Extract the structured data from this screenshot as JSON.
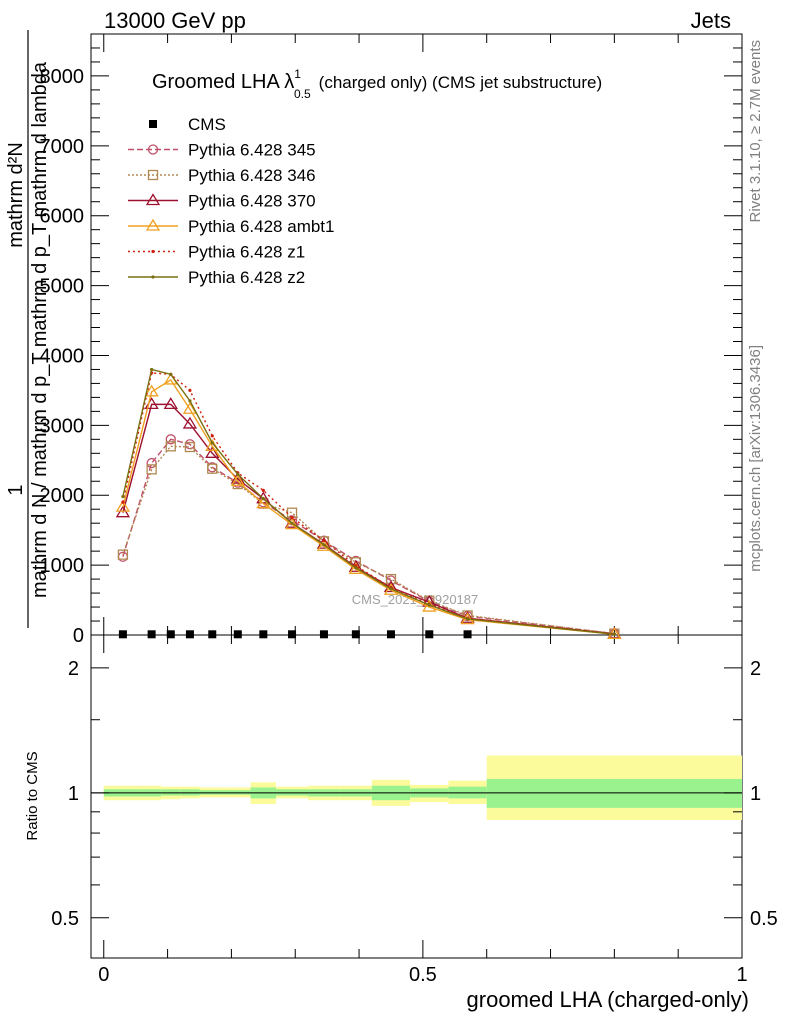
{
  "header": {
    "left": "13000 GeV pp",
    "right": "Jets"
  },
  "side_labels": {
    "rivet": "Rivet 3.1.10, ≥ 2.7M events",
    "mcplots": "mcplots.cern.ch [arXiv:1306.3436]"
  },
  "watermark": "CMS_2021_I1920187",
  "chart_data": [
    {
      "type": "line",
      "title_main": "Groomed LHA λ",
      "title_sup": "1",
      "title_sub": "0.5",
      "title_rest": "(charged only) (CMS jet substructure)",
      "ylabel_top": "1",
      "ylabel_num": "mathrm d²N",
      "ylabel_den": "mathrm d N / mathrm d p_T mathrm d p_T mathrm d lambda",
      "xlabel": "",
      "xlim": [
        -0.02,
        1.0
      ],
      "ylim": [
        0,
        8600
      ],
      "yticks": [
        0,
        1000,
        2000,
        3000,
        4000,
        5000,
        6000,
        7000,
        8000
      ],
      "ytick_labels": [
        "0",
        "1000",
        "2000",
        "3000",
        "4000",
        "5000",
        "6000",
        "7000",
        "8000"
      ],
      "grid": false,
      "legend_position": "top-left",
      "series": [
        {
          "name": "CMS",
          "color": "#000000",
          "marker": "filled-square",
          "dash": "none",
          "x": [
            0.03,
            0.075,
            0.105,
            0.135,
            0.17,
            0.21,
            0.25,
            0.295,
            0.345,
            0.395,
            0.45,
            0.51,
            0.57
          ],
          "y": [
            10,
            10,
            10,
            10,
            10,
            10,
            10,
            10,
            10,
            10,
            10,
            10,
            10
          ]
        },
        {
          "name": "Pythia 6.428 345",
          "color": "#c0506a",
          "marker": "circle",
          "dash": "6,3",
          "x": [
            0.03,
            0.075,
            0.105,
            0.135,
            0.17,
            0.21,
            0.25,
            0.295,
            0.345,
            0.395,
            0.45,
            0.51,
            0.57,
            0.8
          ],
          "y": [
            1120,
            2460,
            2800,
            2730,
            2400,
            2180,
            1900,
            1640,
            1350,
            1060,
            780,
            480,
            270,
            20
          ]
        },
        {
          "name": "Pythia 6.428 346",
          "color": "#b08850",
          "marker": "square",
          "dash": "2,2",
          "x": [
            0.03,
            0.075,
            0.105,
            0.135,
            0.17,
            0.21,
            0.25,
            0.295,
            0.345,
            0.395,
            0.45,
            0.51,
            0.57,
            0.8
          ],
          "y": [
            1150,
            2370,
            2700,
            2690,
            2380,
            2160,
            1880,
            1750,
            1340,
            1040,
            800,
            490,
            280,
            20
          ]
        },
        {
          "name": "Pythia 6.428 370",
          "color": "#9c1030",
          "marker": "triangle",
          "dash": "none",
          "x": [
            0.03,
            0.075,
            0.105,
            0.135,
            0.17,
            0.21,
            0.25,
            0.295,
            0.345,
            0.395,
            0.45,
            0.51,
            0.57,
            0.8
          ],
          "y": [
            1750,
            3300,
            3300,
            3020,
            2600,
            2230,
            1950,
            1600,
            1300,
            970,
            680,
            470,
            240,
            15
          ]
        },
        {
          "name": "Pythia 6.428 ambt1",
          "color": "#f0a020",
          "marker": "triangle",
          "dash": "none",
          "x": [
            0.03,
            0.075,
            0.105,
            0.135,
            0.17,
            0.21,
            0.25,
            0.295,
            0.345,
            0.395,
            0.45,
            0.51,
            0.57,
            0.8
          ],
          "y": [
            1830,
            3480,
            3650,
            3230,
            2700,
            2200,
            1880,
            1580,
            1270,
            940,
            640,
            400,
            220,
            10
          ]
        },
        {
          "name": "Pythia 6.428 z1",
          "color": "#d02010",
          "marker": "dot",
          "dash": "2,3",
          "x": [
            0.03,
            0.075,
            0.105,
            0.135,
            0.17,
            0.21,
            0.25,
            0.295,
            0.345,
            0.395,
            0.45,
            0.51,
            0.57,
            0.8
          ],
          "y": [
            1900,
            3750,
            3730,
            3500,
            2850,
            2320,
            2070,
            1680,
            1350,
            990,
            680,
            440,
            240,
            15
          ]
        },
        {
          "name": "Pythia 6.428 z2",
          "color": "#7a7010",
          "marker": "dot",
          "dash": "none",
          "x": [
            0.03,
            0.075,
            0.105,
            0.135,
            0.17,
            0.21,
            0.25,
            0.295,
            0.345,
            0.395,
            0.45,
            0.51,
            0.57,
            0.8
          ],
          "y": [
            1980,
            3800,
            3730,
            3350,
            2750,
            2300,
            1950,
            1600,
            1290,
            960,
            660,
            430,
            230,
            12
          ]
        }
      ]
    },
    {
      "type": "area",
      "ylabel": "Ratio to CMS",
      "xlabel": "groomed LHA (charged-only)",
      "xlim": [
        -0.02,
        1.0
      ],
      "ylim": [
        0.4,
        2.4
      ],
      "yscale": "log",
      "yticks": [
        0.5,
        1,
        2
      ],
      "ytick_labels": [
        "0.5",
        "1",
        "2"
      ],
      "xticks": [
        0,
        0.5,
        1
      ],
      "xtick_labels": [
        "0",
        "0.5",
        "1"
      ],
      "reference_line": 1,
      "band_colors": {
        "stat": "#99f28e",
        "total": "#fbfb9c"
      },
      "bands": [
        {
          "x0": 0.0,
          "x1": 0.06,
          "stat": [
            0.98,
            1.02
          ],
          "total": [
            0.96,
            1.04
          ]
        },
        {
          "x0": 0.06,
          "x1": 0.09,
          "stat": [
            0.98,
            1.02
          ],
          "total": [
            0.96,
            1.04
          ]
        },
        {
          "x0": 0.09,
          "x1": 0.12,
          "stat": [
            0.985,
            1.02
          ],
          "total": [
            0.965,
            1.035
          ]
        },
        {
          "x0": 0.12,
          "x1": 0.15,
          "stat": [
            0.985,
            1.02
          ],
          "total": [
            0.97,
            1.035
          ]
        },
        {
          "x0": 0.15,
          "x1": 0.19,
          "stat": [
            0.99,
            1.015
          ],
          "total": [
            0.975,
            1.03
          ]
        },
        {
          "x0": 0.19,
          "x1": 0.23,
          "stat": [
            0.99,
            1.015
          ],
          "total": [
            0.975,
            1.03
          ]
        },
        {
          "x0": 0.23,
          "x1": 0.27,
          "stat": [
            0.97,
            1.03
          ],
          "total": [
            0.94,
            1.06
          ]
        },
        {
          "x0": 0.27,
          "x1": 0.32,
          "stat": [
            0.985,
            1.02
          ],
          "total": [
            0.97,
            1.035
          ]
        },
        {
          "x0": 0.32,
          "x1": 0.37,
          "stat": [
            0.98,
            1.02
          ],
          "total": [
            0.96,
            1.04
          ]
        },
        {
          "x0": 0.37,
          "x1": 0.42,
          "stat": [
            0.98,
            1.02
          ],
          "total": [
            0.96,
            1.04
          ]
        },
        {
          "x0": 0.42,
          "x1": 0.48,
          "stat": [
            0.96,
            1.04
          ],
          "total": [
            0.93,
            1.075
          ]
        },
        {
          "x0": 0.48,
          "x1": 0.54,
          "stat": [
            0.975,
            1.025
          ],
          "total": [
            0.95,
            1.045
          ]
        },
        {
          "x0": 0.54,
          "x1": 0.6,
          "stat": [
            0.97,
            1.035
          ],
          "total": [
            0.94,
            1.07
          ]
        },
        {
          "x0": 0.6,
          "x1": 1.0,
          "stat": [
            0.92,
            1.08
          ],
          "total": [
            0.86,
            1.23
          ]
        }
      ]
    }
  ]
}
